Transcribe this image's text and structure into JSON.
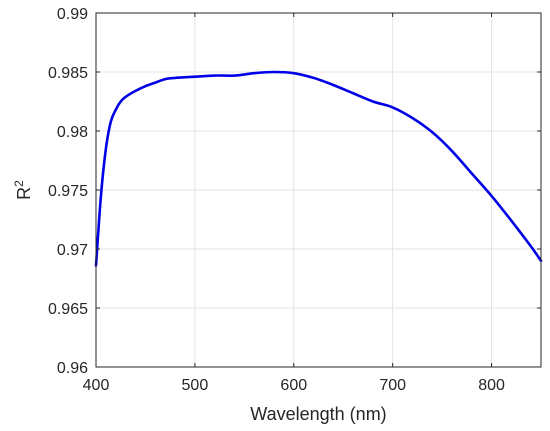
{
  "chart_data": {
    "type": "line",
    "title": "",
    "xlabel": "Wavelength (nm)",
    "ylabel_base": "R",
    "ylabel_sup": "2",
    "xlim": [
      400,
      850
    ],
    "ylim": [
      0.96,
      0.99
    ],
    "xticks": [
      400,
      500,
      600,
      700,
      800
    ],
    "xtick_labels": [
      "400",
      "500",
      "600",
      "700",
      "800"
    ],
    "yticks": [
      0.96,
      0.965,
      0.97,
      0.975,
      0.98,
      0.985,
      0.99
    ],
    "ytick_labels": [
      "0.96",
      "0.965",
      "0.97",
      "0.975",
      "0.98",
      "0.985",
      "0.99"
    ],
    "grid": true,
    "line_color": "#0000e6",
    "series": [
      {
        "x": [
          400,
          405,
          410,
          415,
          420,
          425,
          430,
          440,
          450,
          460,
          470,
          480,
          500,
          520,
          540,
          560,
          580,
          600,
          620,
          640,
          660,
          680,
          700,
          720,
          740,
          760,
          780,
          800,
          820,
          840,
          850
        ],
        "values": [
          0.9686,
          0.9745,
          0.9785,
          0.9808,
          0.9818,
          0.9825,
          0.9829,
          0.9834,
          0.9838,
          0.9841,
          0.9844,
          0.9845,
          0.9846,
          0.9847,
          0.9847,
          0.9849,
          0.985,
          0.9849,
          0.9845,
          0.9839,
          0.9832,
          0.9825,
          0.982,
          0.9811,
          0.9799,
          0.9783,
          0.9764,
          0.9745,
          0.9724,
          0.9702,
          0.969
        ]
      }
    ]
  }
}
